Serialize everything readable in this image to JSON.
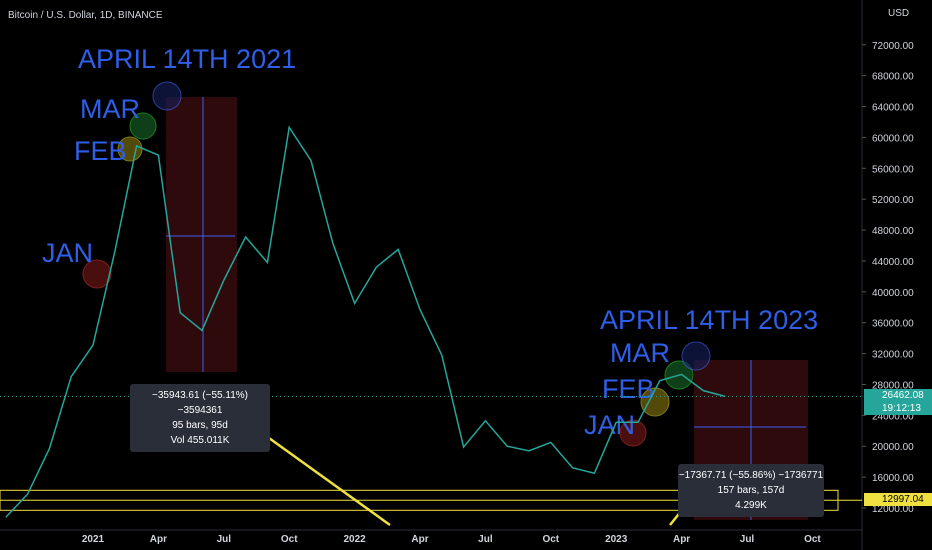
{
  "header": {
    "symbol": "Bitcoin / U.S. Dollar, 1D, BINANCE",
    "currency": "USD"
  },
  "annotations": [
    "APRIL 14TH 2021",
    "MAR",
    "FEB",
    "JAN",
    "APRIL 14TH 2023",
    "MAR",
    "FEB",
    "JAN"
  ],
  "measures": [
    [
      "−35943.61 (−55.11%) −3594361",
      "95 bars, 95d",
      "Vol 455.011K"
    ],
    [
      "−17367.71 (−55.86%) −1736771",
      "157 bars, 157d",
      "4.299K"
    ]
  ],
  "chart_data": {
    "type": "line",
    "color": "#26a69a",
    "categories": [
      null,
      null,
      null,
      null,
      "2021",
      null,
      null,
      "Apr",
      null,
      null,
      "Jul",
      null,
      null,
      "Oct",
      null,
      null,
      "2022",
      null,
      null,
      "Apr",
      null,
      null,
      "Jul",
      null,
      null,
      "Oct",
      null,
      null,
      "2023",
      null,
      null,
      "Apr",
      null,
      null,
      "Jul",
      null,
      null,
      "Oct"
    ],
    "values": [
      10800,
      13800,
      19700,
      29000,
      33100,
      45200,
      58900,
      57700,
      37300,
      35000,
      41500,
      47100,
      43800,
      61300,
      57000,
      46300,
      38500,
      43200,
      45500,
      37700,
      31800,
      19900,
      23300,
      20000,
      19400,
      20500,
      17200,
      16500,
      23100,
      23100,
      28500,
      29300,
      27200,
      26462,
      null,
      null,
      null,
      null
    ],
    "ylim": [
      9150,
      77800
    ],
    "yticks": [
      {
        "value": 12000,
        "label": "12000.00"
      },
      {
        "value": 16000,
        "label": "16000.00"
      },
      {
        "value": 20000,
        "label": "20000.00"
      },
      {
        "value": 24000,
        "label": "24000.00"
      },
      {
        "value": 28000,
        "label": "28000.00"
      },
      {
        "value": 32000,
        "label": "32000.00"
      },
      {
        "value": 36000,
        "label": "36000.00"
      },
      {
        "value": 40000,
        "label": "40000.00"
      },
      {
        "value": 44000,
        "label": "44000.00"
      },
      {
        "value": 48000,
        "label": "48000.00"
      },
      {
        "value": 52000,
        "label": "52000.00"
      },
      {
        "value": 56000,
        "label": "56000.00"
      },
      {
        "value": 60000,
        "label": "60000.00"
      },
      {
        "value": 64000,
        "label": "64000.00"
      },
      {
        "value": 68000,
        "label": "68000.00"
      },
      {
        "value": 72000,
        "label": "72000.00"
      }
    ],
    "last_price": {
      "value": 26462.08,
      "label": "26462.08"
    },
    "countdown": "19:12:13",
    "level": {
      "value": 12997.04,
      "label": "12997.04"
    }
  }
}
